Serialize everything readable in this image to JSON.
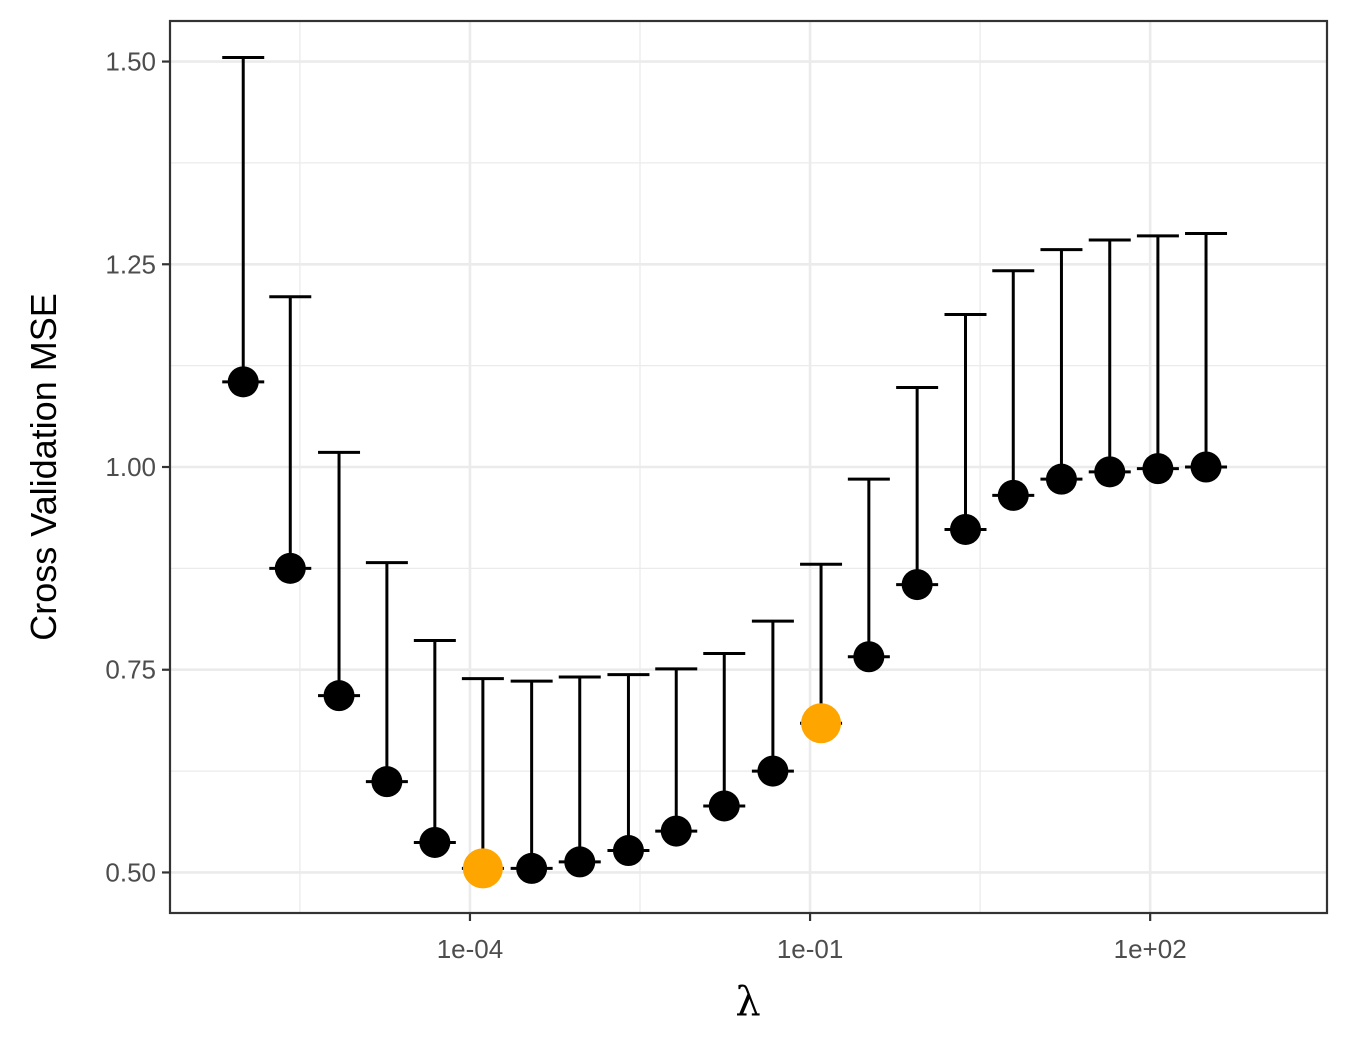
{
  "chart_data": {
    "type": "scatter",
    "xlabel": "λ",
    "ylabel": "Cross Validation MSE",
    "x_scale": "log10",
    "xlim": [
      1e-06,
      1000.0
    ],
    "ylim": [
      0.45,
      1.55
    ],
    "x_ticks": [
      0.0001,
      0.1,
      100.0
    ],
    "x_tick_labels": [
      "1e-04",
      "1e-01",
      "1e+02"
    ],
    "y_ticks": [
      0.5,
      0.75,
      1.0,
      1.25,
      1.5
    ],
    "y_tick_labels": [
      "0.50",
      "0.75",
      "1.00",
      "1.25",
      "1.50"
    ],
    "grid": true,
    "colors": {
      "point": "#000000",
      "highlight": "#FFA500",
      "grid": "#ebebeb",
      "border": "#333333"
    },
    "series": [
      {
        "x": [
          1e-06,
          2.6e-06,
          7e-06,
          1.85e-05,
          4.9e-05,
          0.00013,
          0.00035,
          0.00093,
          0.0025,
          0.0066,
          0.0175,
          0.047,
          0.125,
          0.33,
          0.88,
          2.35,
          6.2,
          16.5,
          44.0,
          117.0,
          311.0
        ],
        "y": [
          1.105,
          0.875,
          0.718,
          0.612,
          0.537,
          0.505,
          0.505,
          0.513,
          0.527,
          0.551,
          0.582,
          0.625,
          0.684,
          0.766,
          0.855,
          0.923,
          0.965,
          0.985,
          0.994,
          0.998,
          1.0
        ],
        "upper": [
          1.505,
          1.21,
          1.018,
          0.882,
          0.786,
          0.739,
          0.736,
          0.741,
          0.744,
          0.751,
          0.77,
          0.81,
          0.88,
          0.985,
          1.098,
          1.188,
          1.242,
          1.268,
          1.28,
          1.285,
          1.288
        ],
        "highlight_indices": [
          5,
          12
        ]
      }
    ]
  }
}
